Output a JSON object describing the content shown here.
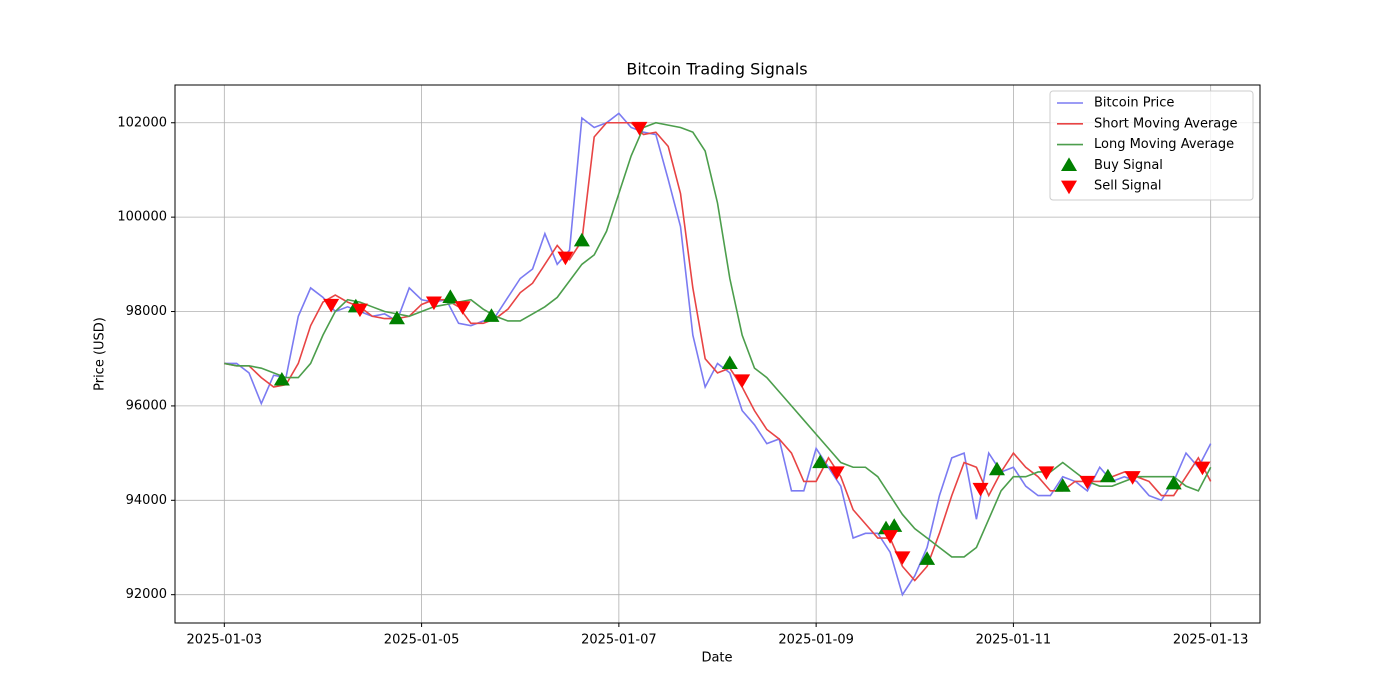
{
  "chart_data": {
    "type": "line",
    "title": "Bitcoin Trading Signals",
    "xlabel": "Date",
    "ylabel": "Price (USD)",
    "grid": true,
    "legend": "upper right",
    "xlim": [
      "2025-01-02 12:00",
      "2025-01-13 12:00"
    ],
    "xticks": [
      {
        "value": "2025-01-03 00:00",
        "label": "2025-01-03"
      },
      {
        "value": "2025-01-05 00:00",
        "label": "2025-01-05"
      },
      {
        "value": "2025-01-07 00:00",
        "label": "2025-01-07"
      },
      {
        "value": "2025-01-09 00:00",
        "label": "2025-01-09"
      },
      {
        "value": "2025-01-11 00:00",
        "label": "2025-01-11"
      },
      {
        "value": "2025-01-13 00:00",
        "label": "2025-01-13"
      }
    ],
    "ylim": [
      91400,
      102800
    ],
    "yticks": [
      92000,
      94000,
      96000,
      98000,
      100000,
      102000
    ],
    "x": [
      "2025-01-03 00:00",
      "2025-01-03 03:00",
      "2025-01-03 06:00",
      "2025-01-03 09:00",
      "2025-01-03 12:00",
      "2025-01-03 15:00",
      "2025-01-03 18:00",
      "2025-01-03 21:00",
      "2025-01-04 00:00",
      "2025-01-04 03:00",
      "2025-01-04 06:00",
      "2025-01-04 09:00",
      "2025-01-04 12:00",
      "2025-01-04 15:00",
      "2025-01-04 18:00",
      "2025-01-04 21:00",
      "2025-01-05 00:00",
      "2025-01-05 03:00",
      "2025-01-05 06:00",
      "2025-01-05 09:00",
      "2025-01-05 12:00",
      "2025-01-05 15:00",
      "2025-01-05 18:00",
      "2025-01-05 21:00",
      "2025-01-06 00:00",
      "2025-01-06 03:00",
      "2025-01-06 06:00",
      "2025-01-06 09:00",
      "2025-01-06 12:00",
      "2025-01-06 15:00",
      "2025-01-06 18:00",
      "2025-01-06 21:00",
      "2025-01-07 00:00",
      "2025-01-07 03:00",
      "2025-01-07 06:00",
      "2025-01-07 09:00",
      "2025-01-07 12:00",
      "2025-01-07 15:00",
      "2025-01-07 18:00",
      "2025-01-07 21:00",
      "2025-01-08 00:00",
      "2025-01-08 03:00",
      "2025-01-08 06:00",
      "2025-01-08 09:00",
      "2025-01-08 12:00",
      "2025-01-08 15:00",
      "2025-01-08 18:00",
      "2025-01-08 21:00",
      "2025-01-09 00:00",
      "2025-01-09 03:00",
      "2025-01-09 06:00",
      "2025-01-09 09:00",
      "2025-01-09 12:00",
      "2025-01-09 15:00",
      "2025-01-09 18:00",
      "2025-01-09 21:00",
      "2025-01-10 00:00",
      "2025-01-10 03:00",
      "2025-01-10 06:00",
      "2025-01-10 09:00",
      "2025-01-10 12:00",
      "2025-01-10 15:00",
      "2025-01-10 18:00",
      "2025-01-10 21:00",
      "2025-01-11 00:00",
      "2025-01-11 03:00",
      "2025-01-11 06:00",
      "2025-01-11 09:00",
      "2025-01-11 12:00",
      "2025-01-11 15:00",
      "2025-01-11 18:00",
      "2025-01-11 21:00",
      "2025-01-12 00:00",
      "2025-01-12 03:00",
      "2025-01-12 06:00",
      "2025-01-12 09:00",
      "2025-01-12 12:00",
      "2025-01-12 15:00",
      "2025-01-12 18:00",
      "2025-01-12 21:00",
      "2025-01-13 00:00"
    ],
    "series": [
      {
        "name": "Bitcoin Price",
        "color": "#7b7bf2",
        "values": [
          96900,
          96900,
          96700,
          96050,
          96650,
          96600,
          97900,
          98500,
          98300,
          98000,
          98100,
          98000,
          97900,
          97950,
          97800,
          98500,
          98250,
          98200,
          98250,
          97750,
          97700,
          97800,
          97900,
          98300,
          98700,
          98900,
          99650,
          99000,
          99300,
          102100,
          101900,
          102000,
          102200,
          101900,
          101800,
          101750,
          100800,
          99800,
          97500,
          96400,
          96900,
          96700,
          95900,
          95600,
          95200,
          95300,
          94200,
          94200,
          95100,
          94700,
          94300,
          93200,
          93300,
          93300,
          92900,
          92000,
          92400,
          93000,
          94100,
          94900,
          95000,
          93600,
          95000,
          94600,
          94700,
          94300,
          94100,
          94100,
          94500,
          94400,
          94200,
          94700,
          94400,
          94500,
          94400,
          94100,
          94000,
          94400,
          95000,
          94700,
          95200
        ]
      },
      {
        "name": "Short Moving Average",
        "color": "#e84444",
        "values": [
          96900,
          96850,
          96850,
          96600,
          96400,
          96450,
          96900,
          97700,
          98200,
          98350,
          98200,
          98100,
          97900,
          97850,
          97850,
          97900,
          98150,
          98250,
          98250,
          98100,
          97750,
          97750,
          97850,
          98050,
          98400,
          98600,
          99000,
          99400,
          99100,
          99500,
          101700,
          102000,
          102000,
          102000,
          101750,
          101800,
          101500,
          100500,
          98500,
          97000,
          96700,
          96800,
          96400,
          95900,
          95500,
          95300,
          95000,
          94400,
          94400,
          94900,
          94500,
          93800,
          93500,
          93200,
          93200,
          92600,
          92300,
          92600,
          93300,
          94100,
          94800,
          94700,
          94100,
          94600,
          95000,
          94700,
          94500,
          94200,
          94200,
          94400,
          94400,
          94400,
          94500,
          94600,
          94500,
          94400,
          94100,
          94100,
          94500,
          94900,
          94400
        ]
      },
      {
        "name": "Long Moving Average",
        "color": "#4c9e4c",
        "values": [
          96900,
          96850,
          96850,
          96800,
          96700,
          96600,
          96600,
          96900,
          97500,
          98000,
          98250,
          98200,
          98100,
          98000,
          97950,
          97900,
          98000,
          98100,
          98150,
          98200,
          98250,
          98050,
          97900,
          97800,
          97800,
          97950,
          98100,
          98300,
          98650,
          99000,
          99200,
          99700,
          100500,
          101300,
          101900,
          102000,
          101950,
          101900,
          101800,
          101400,
          100300,
          98700,
          97500,
          96800,
          96600,
          96300,
          96000,
          95700,
          95400,
          95100,
          94800,
          94700,
          94700,
          94500,
          94100,
          93700,
          93400,
          93200,
          93000,
          92800,
          92800,
          93000,
          93600,
          94200,
          94500,
          94500,
          94600,
          94600,
          94800,
          94600,
          94400,
          94300,
          94300,
          94400,
          94500,
          94500,
          94500,
          94500,
          94300,
          94200,
          94700
        ]
      },
      {
        "name": "Buy Signal",
        "color": "#008000",
        "marker": "^",
        "x": [
          "2025-01-03 14:00",
          "2025-01-04 08:00",
          "2025-01-04 18:00",
          "2025-01-05 07:00",
          "2025-01-05 17:00",
          "2025-01-06 15:00",
          "2025-01-08 03:00",
          "2025-01-09 01:00",
          "2025-01-09 17:00",
          "2025-01-09 19:00",
          "2025-01-10 03:00",
          "2025-01-10 20:00",
          "2025-01-11 12:00",
          "2025-01-11 23:00",
          "2025-01-12 15:00"
        ],
        "values": [
          96550,
          98100,
          97850,
          98300,
          97900,
          99500,
          96900,
          94800,
          93400,
          93450,
          92750,
          94650,
          94300,
          94500,
          94350
        ]
      },
      {
        "name": "Sell Signal",
        "color": "#ff0000",
        "marker": "v",
        "x": [
          "2025-01-04 02:00",
          "2025-01-04 09:00",
          "2025-01-05 03:00",
          "2025-01-05 10:00",
          "2025-01-06 11:00",
          "2025-01-07 05:00",
          "2025-01-08 06:00",
          "2025-01-09 05:00",
          "2025-01-09 18:00",
          "2025-01-09 21:00",
          "2025-01-10 16:00",
          "2025-01-11 08:00",
          "2025-01-11 18:00",
          "2025-01-12 05:00",
          "2025-01-12 22:00"
        ],
        "values": [
          98150,
          98050,
          98200,
          98100,
          99150,
          101900,
          96550,
          94600,
          93250,
          92800,
          94250,
          94600,
          94400,
          94500,
          94700
        ]
      }
    ]
  }
}
